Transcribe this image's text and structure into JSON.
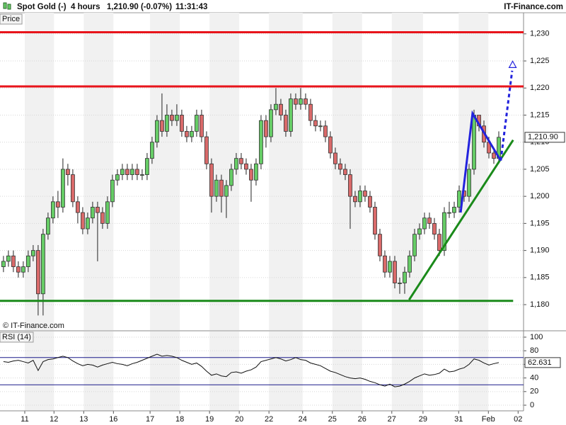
{
  "chart_data": [
    {
      "type": "candlestick",
      "title": "Spot Gold (-)",
      "interval": "4 hours",
      "quote": "1,210.90 (-0.07%)",
      "time": "11:31:43",
      "brand": "IT-Finance.com",
      "panel_label": "Price",
      "watermark": "© IT-Finance.com",
      "up_color": "#66cc66",
      "down_color": "#d96a6a",
      "open": [
        1187,
        1188,
        1189,
        1187,
        1186,
        1187,
        1189,
        1190,
        1182,
        1193,
        1196,
        1199,
        1198,
        1205,
        1204,
        1199,
        1197,
        1194,
        1196,
        1198,
        1197,
        1195,
        1199,
        1203,
        1204,
        1205,
        1204,
        1205,
        1204,
        1204,
        1207,
        1210,
        1214,
        1212,
        1215,
        1214,
        1215,
        1212,
        1211,
        1212,
        1215,
        1211,
        1206,
        1200,
        1203,
        1200,
        1202,
        1205,
        1207,
        1206,
        1205,
        1203,
        1206,
        1214,
        1211,
        1216,
        1217,
        1215,
        1212,
        1218,
        1217,
        1218,
        1217,
        1214,
        1213,
        1213,
        1211,
        1208,
        1206,
        1205,
        1204,
        1200,
        1199,
        1201,
        1200,
        1198,
        1193,
        1189,
        1186,
        1188,
        1184,
        1184,
        1186,
        1189,
        1193,
        1194,
        1196,
        1195,
        1193,
        1190,
        1197,
        1197,
        1198,
        1201,
        1200,
        1205,
        1215,
        1213,
        1210,
        1208,
        1207
      ],
      "high": [
        1189,
        1190,
        1190,
        1188,
        1188,
        1190,
        1191,
        1191,
        1194,
        1197,
        1200,
        1201,
        1207,
        1206,
        1205,
        1200,
        1198,
        1197,
        1199,
        1199,
        1198,
        1200,
        1204,
        1205,
        1206,
        1206,
        1206,
        1206,
        1205,
        1208,
        1211,
        1215,
        1219,
        1217,
        1216,
        1217,
        1216,
        1213,
        1213,
        1216,
        1216,
        1212,
        1207,
        1204,
        1204,
        1203,
        1206,
        1208,
        1208,
        1207,
        1206,
        1207,
        1215,
        1215,
        1217,
        1220,
        1218,
        1216,
        1219,
        1219,
        1220,
        1219,
        1218,
        1215,
        1214,
        1214,
        1212,
        1209,
        1207,
        1206,
        1205,
        1201,
        1202,
        1202,
        1201,
        1199,
        1194,
        1190,
        1189,
        1189,
        1185,
        1187,
        1190,
        1194,
        1195,
        1197,
        1197,
        1196,
        1194,
        1198,
        1199,
        1199,
        1202,
        1202,
        1206,
        1216,
        1215,
        1214,
        1211,
        1209,
        1212
      ],
      "low": [
        1186,
        1187,
        1186,
        1185,
        1185,
        1186,
        1188,
        1178,
        1178,
        1192,
        1195,
        1196,
        1197,
        1202,
        1198,
        1195,
        1193,
        1193,
        1195,
        1188,
        1194,
        1194,
        1198,
        1202,
        1203,
        1203,
        1203,
        1203,
        1203,
        1203,
        1206,
        1209,
        1211,
        1211,
        1213,
        1213,
        1211,
        1210,
        1210,
        1211,
        1210,
        1205,
        1197,
        1199,
        1197,
        1196,
        1201,
        1204,
        1205,
        1204,
        1199,
        1202,
        1205,
        1209,
        1210,
        1215,
        1214,
        1211,
        1211,
        1216,
        1216,
        1216,
        1213,
        1212,
        1212,
        1210,
        1207,
        1205,
        1204,
        1203,
        1194,
        1198,
        1198,
        1199,
        1197,
        1192,
        1188,
        1185,
        1185,
        1183,
        1182,
        1182,
        1185,
        1188,
        1192,
        1193,
        1194,
        1192,
        1189,
        1189,
        1196,
        1196,
        1197,
        1199,
        1199,
        1204,
        1212,
        1209,
        1207,
        1206,
        1206
      ],
      "close": [
        1188,
        1189,
        1187,
        1186,
        1187,
        1189,
        1190,
        1182,
        1193,
        1196,
        1199,
        1198,
        1205,
        1204,
        1199,
        1197,
        1194,
        1196,
        1198,
        1197,
        1195,
        1199,
        1203,
        1204,
        1205,
        1204,
        1205,
        1204,
        1204,
        1207,
        1210,
        1214,
        1212,
        1215,
        1214,
        1215,
        1212,
        1211,
        1212,
        1215,
        1211,
        1206,
        1200,
        1203,
        1200,
        1202,
        1205,
        1207,
        1206,
        1205,
        1203,
        1206,
        1214,
        1211,
        1216,
        1217,
        1215,
        1212,
        1218,
        1217,
        1218,
        1217,
        1214,
        1213,
        1213,
        1211,
        1208,
        1206,
        1205,
        1204,
        1200,
        1199,
        1201,
        1200,
        1198,
        1193,
        1189,
        1186,
        1188,
        1184,
        1184,
        1186,
        1189,
        1193,
        1194,
        1196,
        1195,
        1193,
        1190,
        1197,
        1197,
        1198,
        1201,
        1200,
        1205,
        1215,
        1213,
        1210,
        1208,
        1207,
        1210.9
      ],
      "last_price": {
        "value": 1210.9,
        "label": "1,210.90"
      },
      "xlim": [
        -0.7,
        105
      ],
      "xticks": [
        {
          "value": 4.3,
          "label": "11"
        },
        {
          "value": 10.2,
          "label": "12"
        },
        {
          "value": 16.2,
          "label": "13"
        },
        {
          "value": 22.2,
          "label": "16"
        },
        {
          "value": 29.6,
          "label": "17"
        },
        {
          "value": 35.6,
          "label": "18"
        },
        {
          "value": 41.6,
          "label": "19"
        },
        {
          "value": 47.6,
          "label": "20"
        },
        {
          "value": 53.6,
          "label": "22"
        },
        {
          "value": 60.4,
          "label": "24"
        },
        {
          "value": 66.4,
          "label": "25"
        },
        {
          "value": 72.4,
          "label": "26"
        },
        {
          "value": 78.4,
          "label": "27"
        },
        {
          "value": 84.7,
          "label": "29"
        },
        {
          "value": 91.9,
          "label": "31"
        },
        {
          "value": 97.9,
          "label": "Feb"
        },
        {
          "value": 103.9,
          "label": "02"
        }
      ],
      "ylim": [
        1175.3,
        1233.9
      ],
      "yticks": [
        {
          "value": 1180,
          "label": "1,180"
        },
        {
          "value": 1185,
          "label": "1,185"
        },
        {
          "value": 1190,
          "label": "1,190"
        },
        {
          "value": 1195,
          "label": "1,195"
        },
        {
          "value": 1200,
          "label": "1,200"
        },
        {
          "value": 1205,
          "label": "1,205"
        },
        {
          "value": 1210,
          "label": "1,210"
        },
        {
          "value": 1215,
          "label": "1,215"
        },
        {
          "value": 1220,
          "label": "1,220"
        },
        {
          "value": 1225,
          "label": "1,225"
        },
        {
          "value": 1230,
          "label": "1,230"
        }
      ],
      "grid": true,
      "trendlines": [
        {
          "color": "#e8141b",
          "x": [
            -0.7,
            105
          ],
          "y": [
            1230.3,
            1230.3
          ]
        },
        {
          "color": "#e8141b",
          "x": [
            -0.7,
            105
          ],
          "y": [
            1220.3,
            1220.3
          ]
        },
        {
          "color": "#1a8a1a",
          "x": [
            -0.7,
            102.9
          ],
          "y": [
            1180.7,
            1180.7
          ]
        },
        {
          "color": "#1a8a1a",
          "x": [
            81.9,
            102.9
          ],
          "y": [
            1180.9,
            1210.4
          ]
        },
        {
          "color": "#2222dd",
          "x": [
            92.3,
            94.7,
            100.4
          ],
          "y": [
            1197,
            1215.3,
            1206.6
          ]
        },
        {
          "color": "#2222dd",
          "dashed": true,
          "x": [
            100.4,
            102.7
          ],
          "y": [
            1206.6,
            1223.2
          ]
        }
      ],
      "target_marker": {
        "color": "#2222dd",
        "x": 102.8,
        "y": 1224.3
      }
    },
    {
      "type": "line",
      "title": "RSI (14)",
      "color": "#111111",
      "values": [
        64,
        63,
        65,
        66,
        64,
        62,
        66,
        51,
        64,
        67,
        68,
        70,
        72,
        70,
        65,
        61,
        58,
        60,
        59,
        56,
        59,
        61,
        63,
        61,
        60,
        58,
        61,
        63,
        66,
        69,
        72,
        75,
        72,
        73,
        72,
        70,
        66,
        63,
        60,
        62,
        57,
        50,
        44,
        46,
        43,
        42,
        48,
        49,
        47,
        50,
        52,
        56,
        64,
        66,
        68,
        70,
        68,
        65,
        67,
        70,
        67,
        66,
        62,
        60,
        58,
        54,
        50,
        48,
        45,
        42,
        40,
        39,
        40,
        38,
        35,
        33,
        30,
        28,
        31,
        27,
        28,
        31,
        35,
        40,
        43,
        46,
        44,
        45,
        47,
        53,
        49,
        50,
        53,
        55,
        60,
        68,
        66,
        62,
        59,
        61,
        62.631
      ],
      "ylim": [
        -8.3,
        108.3
      ],
      "yticks": [
        0,
        20,
        40,
        60,
        80,
        100
      ],
      "reference_lines": [
        70,
        30
      ],
      "reference_color": "#1a1a8a"
    }
  ]
}
